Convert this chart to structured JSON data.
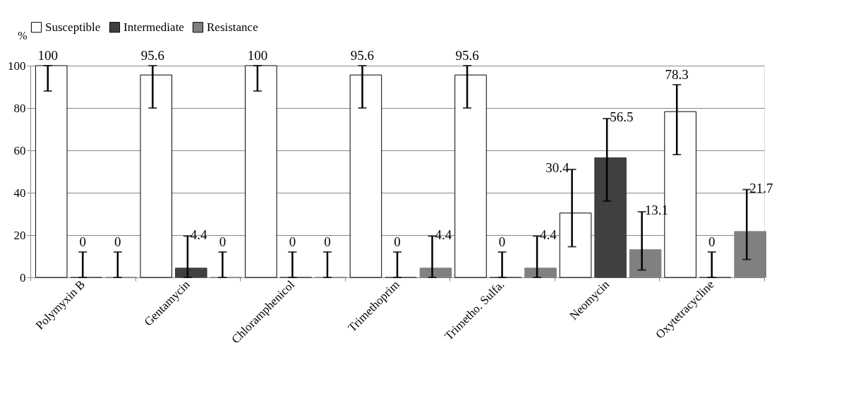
{
  "chart_data": {
    "type": "bar",
    "ylabel": "%",
    "categories": [
      "Polymyxin B",
      "Gentamycin",
      "Chloramphenicol",
      "Trimethoprim",
      "Trimetho. Sulfa.",
      "Neomycin",
      "Oxytetracycline"
    ],
    "series": [
      {
        "name": "Susceptible",
        "color": "#ffffff",
        "values": [
          100,
          95.6,
          100,
          95.6,
          95.6,
          30.4,
          78.3
        ],
        "errors": [
          [
            88,
            100
          ],
          [
            80,
            100
          ],
          [
            88,
            100
          ],
          [
            80,
            100
          ],
          [
            80,
            100
          ],
          [
            14.5,
            51
          ],
          [
            58,
            91
          ]
        ]
      },
      {
        "name": "Intermediate",
        "color": "#404040",
        "values": [
          0,
          4.4,
          0,
          0,
          0,
          56.5,
          0
        ],
        "errors": [
          [
            0,
            12
          ],
          [
            0,
            19.5
          ],
          [
            0,
            12
          ],
          [
            0,
            12
          ],
          [
            0,
            12
          ],
          [
            36,
            75
          ],
          [
            0,
            12
          ]
        ]
      },
      {
        "name": "Resistance",
        "color": "#808080",
        "values": [
          0,
          0,
          0,
          4.4,
          4.4,
          13.1,
          21.7
        ],
        "errors": [
          [
            0,
            12
          ],
          [
            0,
            12
          ],
          [
            0,
            12
          ],
          [
            0,
            19.5
          ],
          [
            0,
            19.5
          ],
          [
            3.5,
            31
          ],
          [
            8.5,
            41.5
          ]
        ]
      }
    ],
    "ylim": [
      0,
      100
    ],
    "yticks": [
      0,
      20,
      40,
      60,
      80,
      100
    ],
    "grid": "y",
    "legend": "top",
    "data_labels": true
  }
}
